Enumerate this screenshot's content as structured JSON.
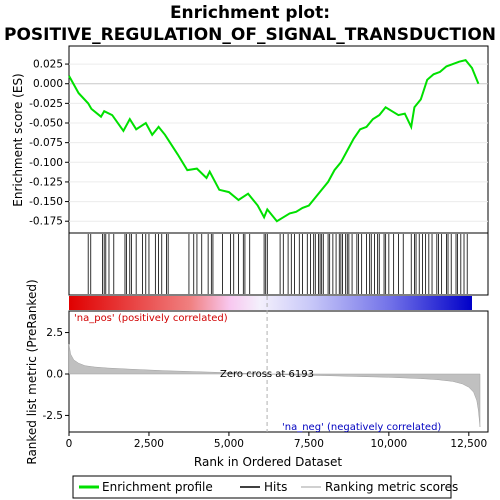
{
  "chart_data": {
    "type": "line",
    "title_line1": "Enrichment plot:",
    "title_line2": "POSITIVE_REGULATION_OF_SIGNAL_TRANSDUCTION",
    "top_panel": {
      "ylabel": "Enrichment score (ES)",
      "ylim": [
        -0.19,
        0.048
      ],
      "yticks": [
        0.025,
        0.0,
        -0.025,
        -0.05,
        -0.075,
        -0.1,
        -0.125,
        -0.15,
        -0.175
      ],
      "ytick_labels": [
        "0.025",
        "0.000",
        "-0.025",
        "-0.050",
        "-0.075",
        "-0.100",
        "-0.125",
        "-0.150",
        "-0.175"
      ],
      "line_color": "#00e000",
      "series_name": "Enrichment profile",
      "x": [
        0,
        300,
        600,
        700,
        1000,
        1100,
        1350,
        1700,
        1900,
        2100,
        2400,
        2600,
        2800,
        3000,
        3400,
        3700,
        4000,
        4300,
        4400,
        4700,
        5000,
        5300,
        5600,
        5900,
        6100,
        6200,
        6500,
        6700,
        6900,
        7100,
        7300,
        7500,
        7700,
        7900,
        8100,
        8300,
        8500,
        8700,
        8900,
        9100,
        9300,
        9500,
        9700,
        9900,
        10100,
        10300,
        10500,
        10700,
        10800,
        11000,
        11200,
        11400,
        11600,
        11800,
        12000,
        12200,
        12400,
        12600,
        12800
      ],
      "y": [
        0.01,
        -0.012,
        -0.025,
        -0.032,
        -0.042,
        -0.035,
        -0.04,
        -0.06,
        -0.045,
        -0.058,
        -0.05,
        -0.065,
        -0.055,
        -0.065,
        -0.09,
        -0.11,
        -0.108,
        -0.12,
        -0.112,
        -0.135,
        -0.138,
        -0.148,
        -0.14,
        -0.155,
        -0.17,
        -0.16,
        -0.175,
        -0.17,
        -0.165,
        -0.163,
        -0.158,
        -0.155,
        -0.145,
        -0.135,
        -0.125,
        -0.11,
        -0.1,
        -0.085,
        -0.07,
        -0.058,
        -0.055,
        -0.045,
        -0.04,
        -0.03,
        -0.035,
        -0.04,
        -0.038,
        -0.055,
        -0.03,
        -0.02,
        0.005,
        0.012,
        0.015,
        0.022,
        0.025,
        0.028,
        0.03,
        0.02,
        0.0
      ]
    },
    "hits": [
      600,
      680,
      1050,
      1100,
      1150,
      1250,
      1400,
      1750,
      1800,
      1900,
      1950,
      2100,
      2300,
      2400,
      2500,
      2700,
      2800,
      2900,
      3050,
      3100,
      3750,
      3900,
      4000,
      4150,
      4350,
      4450,
      4500,
      4800,
      5050,
      5150,
      5300,
      5450,
      5500,
      5650,
      6100,
      6150,
      6200,
      6600,
      6700,
      6850,
      6950,
      7050,
      7200,
      7300,
      7450,
      7550,
      7650,
      7700,
      7800,
      7850,
      7900,
      7950,
      8100,
      8150,
      8250,
      8350,
      8450,
      8500,
      8550,
      8650,
      8700,
      8750,
      8850,
      9000,
      9050,
      9150,
      9300,
      9400,
      9450,
      9550,
      9650,
      9700,
      9850,
      9900,
      10000,
      10150,
      10300,
      10450,
      10700,
      10800,
      10850,
      10950,
      11050,
      11150,
      11250,
      11350,
      11500,
      11550,
      11650,
      11800,
      11850,
      11950,
      12100,
      12150,
      12250,
      12350,
      12450
    ],
    "bottom_panel": {
      "ylabel": "Ranked list metric (PreRanked)",
      "ylim": [
        -3.5,
        3.8
      ],
      "yticks": [
        2.5,
        0.0,
        -2.5
      ],
      "ytick_labels": [
        "2.5",
        "0.0",
        "-2.5"
      ],
      "zero_cross_label": "Zero cross at 6193",
      "zero_cross": 6193,
      "pos_label": "'na_pos' (positively correlated)",
      "neg_label": "'na_neg' (negatively correlated)",
      "metric_x": [
        0,
        50,
        150,
        300,
        500,
        800,
        1200,
        2000,
        3000,
        4000,
        5000,
        6193,
        7000,
        8000,
        9000,
        10000,
        11000,
        11500,
        12000,
        12300,
        12500,
        12650,
        12750,
        12800,
        12850
      ],
      "metric_y": [
        1.8,
        1.2,
        0.85,
        0.65,
        0.5,
        0.42,
        0.36,
        0.28,
        0.2,
        0.14,
        0.08,
        0.0,
        -0.06,
        -0.1,
        -0.15,
        -0.2,
        -0.28,
        -0.34,
        -0.45,
        -0.6,
        -0.8,
        -1.1,
        -1.6,
        -2.2,
        -3.2
      ]
    },
    "xaxis": {
      "label": "Rank in Ordered Dataset",
      "xlim": [
        0,
        13100
      ],
      "ticks": [
        0,
        2500,
        5000,
        7500,
        10000,
        12500
      ],
      "tick_labels": [
        "0",
        "2,500",
        "5,000",
        "7,500",
        "10,000",
        "12,500"
      ]
    },
    "legend": {
      "items": [
        "Enrichment profile",
        "Hits",
        "Ranking metric scores"
      ],
      "placement": "bottom"
    }
  }
}
